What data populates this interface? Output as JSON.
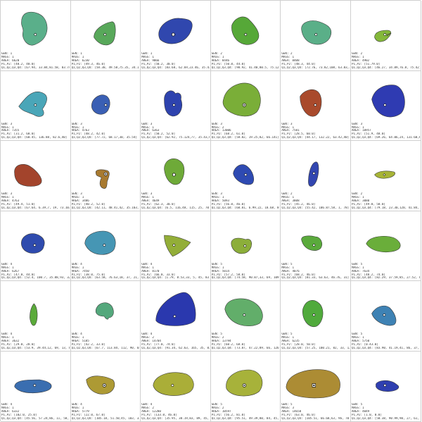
{
  "cells": [
    {
      "gen": "GEN: 1",
      "mass": "MASS: 1",
      "area": "AREA: 6620",
      "p1p2": "P1,P2: [48.2, 48.0]",
      "q": "Q1,Q2,Q3,Q4: [67.94, 33.84,81.58, 83.74]",
      "color": "#5aaf8a",
      "shape": "a",
      "marker": "dot"
    },
    {
      "gen": "GEN: 1",
      "mass": "MASS: 1",
      "area": "AREA: 6230",
      "p1p2": "P1,P2: [49.3, 46.0]",
      "q": "Q1,Q2,Q3,Q4: [58.30, 49.58,75.35, 34.17,58]",
      "color": "#58a85a",
      "shape": "b",
      "marker": "dot"
    },
    {
      "gen": "GEN: 1",
      "mass": "MASS: 1",
      "area": "AREA: 9066",
      "p1p2": "P1,P2: [50.2, 30.0]",
      "q": "Q1,Q2,Q3,Q4: [83.68, 62.69,23.46, 35.430]",
      "color": "#3047ae",
      "shape": "c",
      "marker": "dotbig"
    },
    {
      "gen": "GEN: 2",
      "mass": "MASS: 1",
      "area": "AREA: 8446",
      "p1p2": "P1,P2: [50.0, 44.0]",
      "q": "Q1,Q2,Q3,Q4: [90.92, 41.40,80.5, 75.128]",
      "color": "#56a838",
      "shape": "d",
      "marker": "dot"
    },
    {
      "gen": "GEN: 2",
      "mass": "MASS: 1",
      "area": "AREA: 8408",
      "p1p2": "P1,P2: [48.3, 44.0]",
      "q": "Q1,Q2,Q3,Q4: [72.76, 73.82,108, 63.83,34]",
      "color": "#5aaf88",
      "shape": "e",
      "marker": "dot"
    },
    {
      "gen": "GEN: 2",
      "mass": "MASS: 1",
      "area": "AREA: 4902",
      "p1p2": "P1,P2: [51.79.0]",
      "q": "Q1,Q2,Q3,Q4: [46.27, 34.89,76.8, 75.42]",
      "color": "#84b83a",
      "shape": "f",
      "marker": "dot"
    },
    {
      "gen": "GEN: 3",
      "mass": "MASS: 1",
      "area": "AREA: 7355",
      "p1p2": "P1,P2: [31.2, 68.0]",
      "q": "Q1,Q2,Q3,Q4: [60.45, 136.88, 82.6,40]",
      "color": "#4aa6b8",
      "shape": "g",
      "marker": "dot"
    },
    {
      "gen": "GEN: 3",
      "mass": "MASS: 1",
      "area": "AREA: 4763",
      "p1p2": "P1,P2: [48.2, 42.0]",
      "q": "Q1,Q2,Q3,Q4: [77.72, 68.17,30, 35.54]",
      "color": "#3a5fb4",
      "shape": "h",
      "marker": "dot"
    },
    {
      "gen": "GEN: 3",
      "mass": "MASS: 1",
      "area": "AREA: 6363",
      "p1p2": "P1,P2: [50.2, 52.0]",
      "q": "Q1,Q2,Q3,Q4: [62.92, 75.124,77, 35.43,84]",
      "color": "#2e43ae",
      "shape": "i",
      "marker": "dot"
    },
    {
      "gen": "GEN: 3",
      "mass": "MASS: 2",
      "area": "AREA: 13006",
      "p1p2": "P1,P2: [68.2, 61.0]",
      "q": "Q1,Q2,Q3,Q4: [58.82, 19.25,82, 66.141]",
      "color": "#7aae38",
      "shape": "j",
      "marker": "ring"
    },
    {
      "gen": "GEN: 3",
      "mass": "MASS: 1",
      "area": "AREA: 7581",
      "p1p2": "P1,P2: [28.5, 60.0]",
      "q": "Q1,Q2,Q3,Q4: [44.17, 132.22, 63.42,40]",
      "color": "#a94a2c",
      "shape": "k",
      "marker": "dot"
    },
    {
      "gen": "GEN: 3",
      "mass": "MASS: 1",
      "area": "AREA: 10957",
      "p1p2": "P1,P2: [51.9, 48.0]",
      "q": "Q1,Q2,Q3,Q4: [69.26, 64.06,24, 131.60,67]",
      "color": "#2f3bb2",
      "shape": "l",
      "marker": "dot"
    },
    {
      "gen": "GEN: 3",
      "mass": "MASS: 1",
      "area": "AREA: 4763",
      "p1p2": "P1,P2: [49.4, 51.0]",
      "q": "Q1,Q2,Q3,Q4: [67.64, 6.39,7, 19, 73.103]",
      "color": "#a3442c",
      "shape": "m",
      "marker": "none"
    },
    {
      "gen": "GEN: 3",
      "mass": "MASS: 1",
      "area": "AREA: 3486",
      "p1p2": "P1,P2: [40.2, 52.0]",
      "q": "Q1,Q2,Q3,Q4: [42.11, 48.41,42, 35.103,14]",
      "color": "#a87a30",
      "shape": "n",
      "marker": "ring"
    },
    {
      "gen": "GEN: 3",
      "mass": "MASS: 1",
      "area": "AREA: 4649",
      "p1p2": "P1,P2: [62.3, 30.0]",
      "q": "Q1,Q2,Q3,Q4: [6.5, 116,48, 115, 25, 70]",
      "color": "#6eaa38",
      "shape": "o",
      "marker": "dotbig"
    },
    {
      "gen": "GEN: 3",
      "mass": "MASS: 1",
      "area": "AREA: 5093",
      "p1p2": "P1,P2: [56.0, 46.0]",
      "q": "Q1,Q2,Q3,Q4: [60.81, 6.99,22, 18.68, 86]",
      "color": "#2e4ab2",
      "shape": "p",
      "marker": "dot"
    },
    {
      "gen": "GEN: 2",
      "mass": "MASS: 1",
      "area": "AREA: 3808",
      "p1p2": "P1,P2: [45.2, 46.0]",
      "q": "Q1,Q2,Q3,Q4: [55.42, 106.87,58, 1, 78]",
      "color": "#3246b0",
      "shape": "q",
      "marker": "dot"
    },
    {
      "gen": "GEN: 2",
      "mass": "MASS: 1",
      "area": "AREA: 3080",
      "p1p2": "P1,P2: [49.0, 58.0]",
      "q": "Q1,Q2,Q3,Q4: [79.18, 23.30,120, 41.84, 21]",
      "color": "#a7b436",
      "shape": "r",
      "marker": "cross"
    },
    {
      "gen": "GEN: 4",
      "mass": "MASS: 1",
      "area": "AREA: 6267",
      "p1p2": "P1,P2: [47.0, 44.0]",
      "q": "Q1,Q2,Q3,Q4: [52.4, 100.7, 35.88,93, 32, 86.74]",
      "color": "#2f4bae",
      "shape": "s",
      "marker": "dot"
    },
    {
      "gen": "GEN: 4",
      "mass": "MASS: 1",
      "area": "AREA: 7450",
      "p1p2": "P1,P2: [38.0, 75.0]",
      "q": "Q1,Q2,Q3,Q4: [63.58, 76.63,18, 37, 21, 62]",
      "color": "#4696b4",
      "shape": "t",
      "marker": "dot"
    },
    {
      "gen": "GEN: 4",
      "mass": "MASS: 1",
      "area": "AREA: 8170",
      "p1p2": "P1,P2: [66.0, 33.0]",
      "q": "Q1,Q2,Q3,Q4: [1.79, 8.53,33, 5, 45, 83]",
      "color": "#93ae38",
      "shape": "u",
      "marker": "dot"
    },
    {
      "gen": "GEN: 5",
      "mass": "MASS: 1",
      "area": "AREA: 5014",
      "p1p2": "P1,P2: [57.2, 58.0]",
      "q": "Q1,Q2,Q3,Q4: [74.58, 90.87,33, 69, 109, 27]",
      "color": "#8cae3a",
      "shape": "v",
      "marker": "dot"
    },
    {
      "gen": "GEN: 5",
      "mass": "MASS: 1",
      "area": "AREA: 4076",
      "p1p2": "P1,P2: [68.2, 46.0]",
      "q": "Q1,Q2,Q3,Q4: [81.33, 63.63, 46.76, 31]",
      "color": "#5aaa3c",
      "shape": "w",
      "marker": "dot"
    },
    {
      "gen": "GEN: 5",
      "mass": "MASS: 1",
      "area": "AREA: 7634",
      "p1p2": "P1,P2: [48.2, 74.0]",
      "q": "Q1,Q2,Q3,Q4: [82.29, 37.59,85, 27.52, 64]",
      "color": "#6aae3a",
      "shape": "x",
      "marker": "none"
    },
    {
      "gen": "GEN: 4",
      "mass": "MASS: 1",
      "area": "AREA: 3632",
      "p1p2": "P1,P2: [29.0, 28.0]",
      "q": "Q1,Q2,Q3,Q4: [53.9, 39.44,12, 69, 13, 69]",
      "color": "#5aaa3a",
      "shape": "y",
      "marker": "none"
    },
    {
      "gen": "GEN: 4",
      "mass": "MASS: 1",
      "area": "AREA: 5185",
      "p1p2": "P1,P2: [42.2, 33.0]",
      "q": "Q1,Q2,Q3,Q4: [67.7, 113.84, 112, 90, 68]",
      "color": "#54a87c",
      "shape": "z",
      "marker": "none"
    },
    {
      "gen": "GEN: 4",
      "mass": "MASS: 2",
      "area": "AREA: 14704",
      "p1p2": "P1,P2: [77.0, 74.0]",
      "q": "Q1,Q2,Q3,Q4: [91.34, 62.63, 165, 35, 83]",
      "color": "#2a38ae",
      "shape": "A",
      "marker": "dot"
    },
    {
      "gen": "GEN: 5",
      "mass": "MASS: 2",
      "area": "AREA: 13794",
      "p1p2": "P1,P2: [60.2, 68.0]",
      "q": "Q1,Q2,Q3,Q4: [73.87, 47.22,89, 66, 126, 79]",
      "color": "#62ae6a",
      "shape": "B",
      "marker": "dot"
    },
    {
      "gen": "GEN: 5",
      "mass": "MASS: 1",
      "area": "AREA: 6235",
      "p1p2": "P1,P2: [28.0, 50.0]",
      "q": "Q1,Q2,Q3,Q4: [57.25, 100.21, 82, 33, 120]",
      "color": "#50aa3c",
      "shape": "C",
      "marker": "dot"
    },
    {
      "gen": "GEN: 5",
      "mass": "MASS: 1",
      "area": "AREA: 5750",
      "p1p2": "P1,P2: [0.43.0]",
      "q": "Q1,Q2,Q3,Q4: [83.90, 41.19,41, 86, 37, 09]",
      "color": "#3e82b4",
      "shape": "D",
      "marker": "dot"
    },
    {
      "gen": "GEN: 4",
      "mass": "MASS: 1",
      "area": "AREA: 6332",
      "p1p2": "P1,P2: [102.0, 25.0]",
      "q": "Q1,Q2,Q3,Q4: [45.56, 57.24,86, 11, 58, 46]",
      "color": "#3a6eb0",
      "shape": "E",
      "marker": "dot"
    },
    {
      "gen": "GEN: 4",
      "mass": "MASS: 1",
      "area": "AREA: 5779",
      "p1p2": "P1,P2: [22.0, 67.0]",
      "q": "Q1,Q2,Q3,Q4: [105.18, 51.50,45, 103, 32]",
      "color": "#ad9a34",
      "shape": "F",
      "marker": "ring"
    },
    {
      "gen": "GEN: 4",
      "mass": "MASS: 2",
      "area": "AREA: 12280",
      "p1p2": "P1,P2: [133.0, 46.0]",
      "q": "Q1,Q2,Q3,Q4: [35.95, 38.19,83, 89, 45, 70]",
      "color": "#aaae38",
      "shape": "G",
      "marker": "dot"
    },
    {
      "gen": "GEN: 5",
      "mass": "MASS: 2",
      "area": "AREA: 10597",
      "p1p2": "P1,P2: [56.2, 81.0]",
      "q": "Q1,Q2,Q3,Q4: [95.51, 49.39,80, 84, 45, 101]",
      "color": "#a7b23a",
      "shape": "H",
      "marker": "ring"
    },
    {
      "gen": "GEN: 5",
      "mass": "MASS: 3",
      "area": "AREA: 14658",
      "p1p2": "P1,P2: [63.0, 46.0]",
      "q": "Q1,Q2,Q3,Q4: [105.51, 66.68,63, 96, 70, 83]",
      "color": "#ac8c34",
      "shape": "I",
      "marker": "square"
    },
    {
      "gen": "GEN: 5",
      "mass": "MASS: 1",
      "area": "AREA: 4049",
      "p1p2": "P1,P2: [1.0, 0.0]",
      "q": "Q1,Q2,Q3,Q4: [50.38, 90.99,90, 27, 61, 27]",
      "color": "#2f3fb0",
      "shape": "J",
      "marker": "dot"
    }
  ]
}
